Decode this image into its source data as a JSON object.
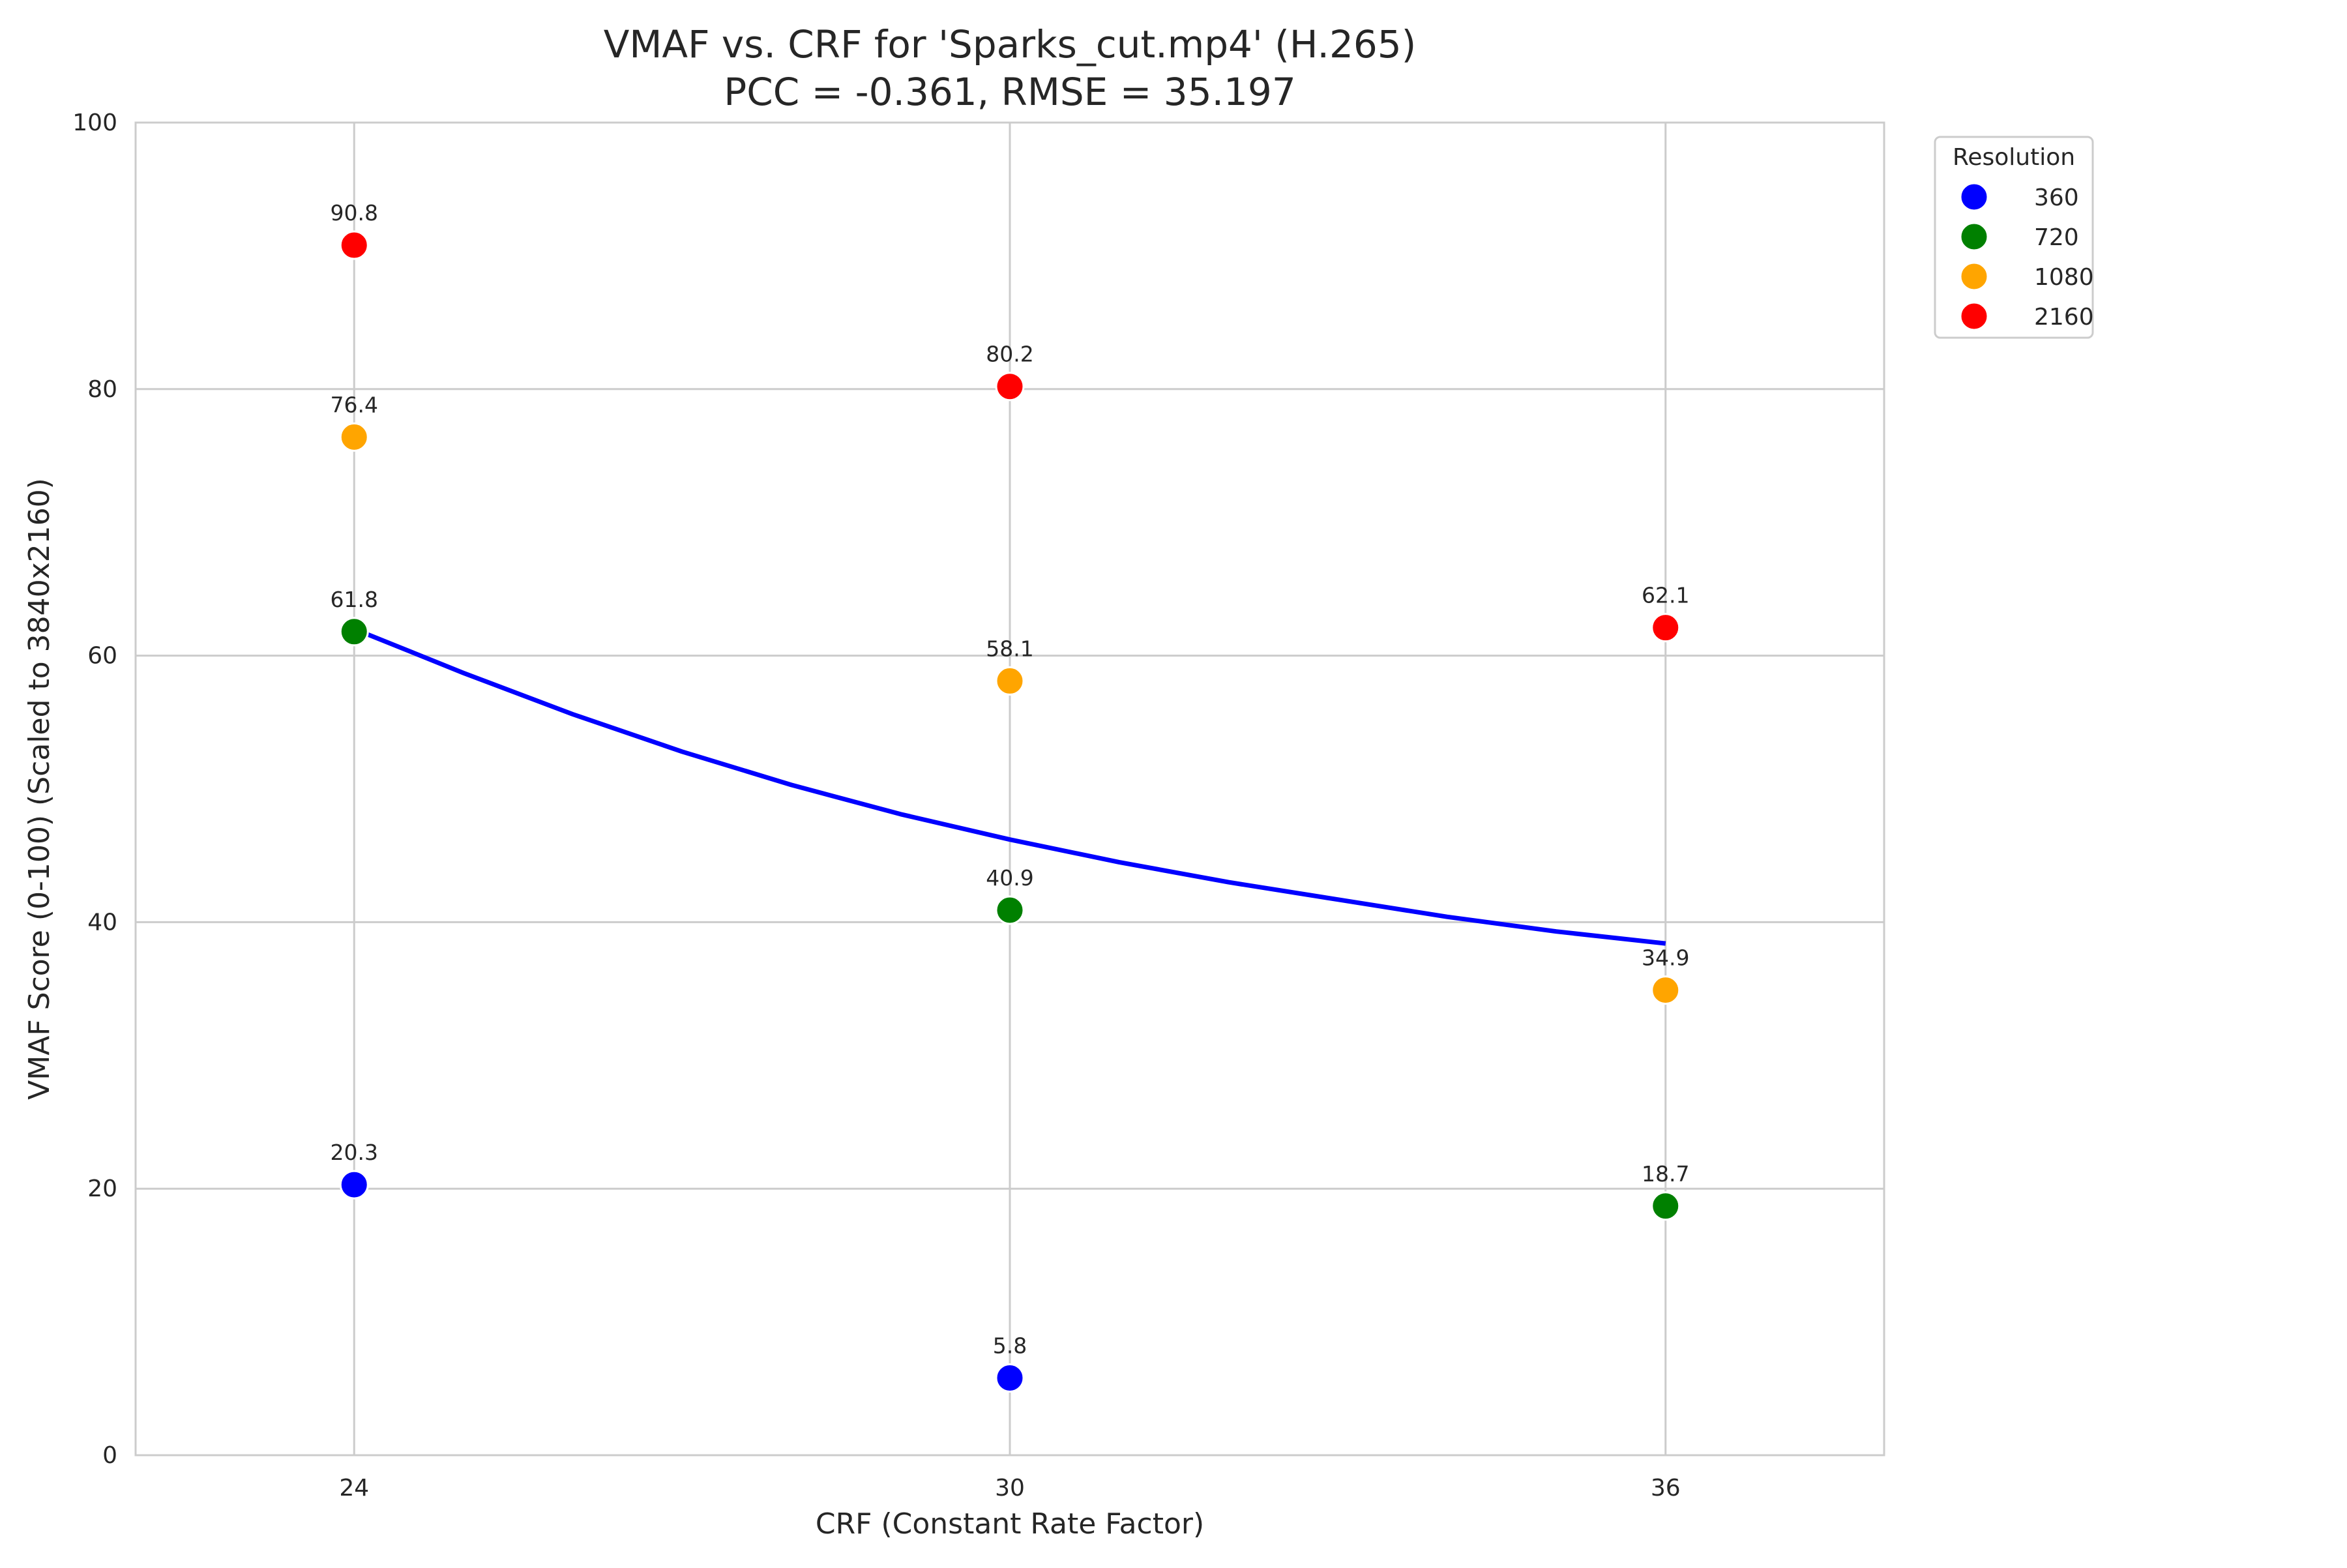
{
  "chart_data": {
    "type": "scatter",
    "title": "VMAF vs. CRF for 'Sparks_cut.mp4' (H.265)",
    "subtitle": "PCC = -0.361, RMSE = 35.197",
    "xlabel": "CRF (Constant Rate Factor)",
    "ylabel": "VMAF Score (0-100) (Scaled to 3840x2160)",
    "x_ticks": [
      24,
      30,
      36
    ],
    "y_ticks": [
      0,
      20,
      40,
      60,
      80,
      100
    ],
    "xlim": [
      22,
      38
    ],
    "ylim": [
      0,
      100
    ],
    "grid": true,
    "legend": {
      "title": "Resolution",
      "placement": "outside-top-right"
    },
    "series": [
      {
        "name": "360",
        "color": "#0000ff",
        "x": [
          24,
          30
        ],
        "y": [
          20.3,
          5.8
        ],
        "labels": [
          "20.3",
          "5.8"
        ]
      },
      {
        "name": "720",
        "color": "#008000",
        "x": [
          24,
          30,
          36
        ],
        "y": [
          61.8,
          40.9,
          18.7
        ],
        "labels": [
          "61.8",
          "40.9",
          "18.7"
        ]
      },
      {
        "name": "1080",
        "color": "#ffa500",
        "x": [
          24,
          30,
          36
        ],
        "y": [
          76.4,
          58.1,
          34.9
        ],
        "labels": [
          "76.4",
          "58.1",
          "34.9"
        ]
      },
      {
        "name": "2160",
        "color": "#ff0000",
        "x": [
          24,
          30,
          36
        ],
        "y": [
          90.8,
          80.2,
          62.1
        ],
        "labels": [
          "90.8",
          "80.2",
          "62.1"
        ]
      }
    ],
    "fit_curve": {
      "color": "#0000ff",
      "x": [
        24,
        25,
        26,
        27,
        28,
        29,
        30,
        31,
        32,
        33,
        34,
        35,
        36
      ],
      "y": [
        62.0,
        58.7,
        55.6,
        52.8,
        50.3,
        48.1,
        46.2,
        44.5,
        43.0,
        41.7,
        40.4,
        39.3,
        38.4
      ]
    }
  }
}
